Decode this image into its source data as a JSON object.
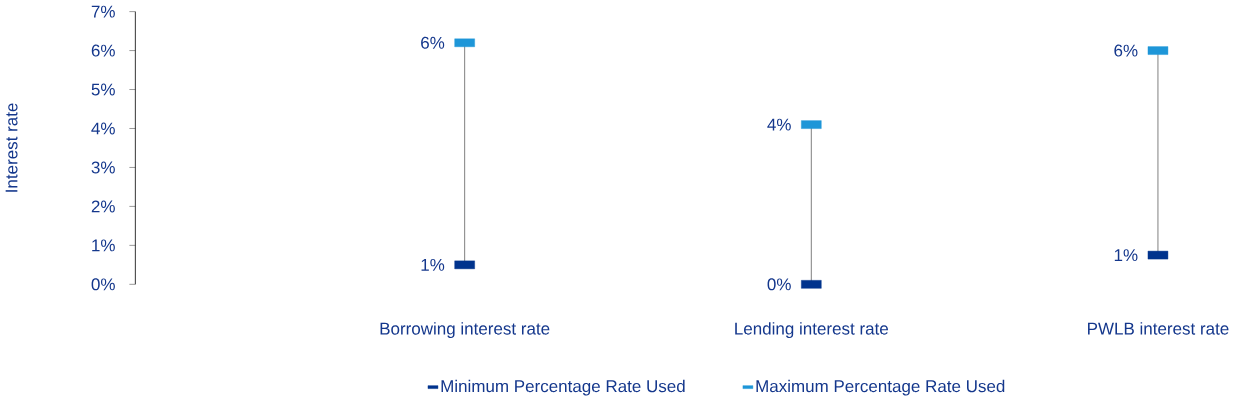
{
  "chart_data": {
    "type": "scatter",
    "ylabel": "Interest rate",
    "categories": [
      "Borrowing interest rate",
      "Lending interest rate",
      "PWLB interest rate"
    ],
    "series": [
      {
        "name": "Minimum Percentage Rate Used",
        "color": "#00338d",
        "values": [
          0.5,
          0.0,
          0.75
        ],
        "value_labels": [
          "1%",
          "0%",
          "1%"
        ]
      },
      {
        "name": "Maximum Percentage Rate Used",
        "color": "#1e96d8",
        "values": [
          6.2,
          4.1,
          6.0
        ],
        "value_labels": [
          "6%",
          "4%",
          "6%"
        ]
      }
    ],
    "ylim": [
      0,
      7
    ],
    "yticks": [
      {
        "value": 0,
        "label": "0%"
      },
      {
        "value": 1,
        "label": "1%"
      },
      {
        "value": 2,
        "label": "2%"
      },
      {
        "value": 3,
        "label": "3%"
      },
      {
        "value": 4,
        "label": "4%"
      },
      {
        "value": 5,
        "label": "5%"
      },
      {
        "value": 6,
        "label": "6%"
      },
      {
        "value": 7,
        "label": "7%"
      }
    ],
    "legend": "bottom"
  }
}
